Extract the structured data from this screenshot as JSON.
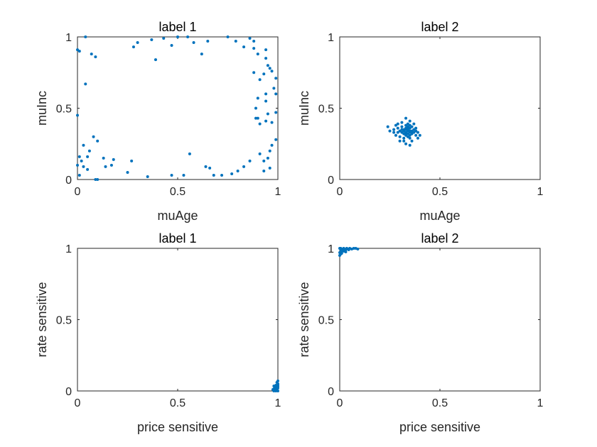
{
  "marker_color": "#0072BD",
  "chart_data": [
    {
      "type": "scatter",
      "title": "label 1",
      "xlabel": "muAge",
      "ylabel": "muInc",
      "xlim": [
        0,
        1
      ],
      "ylim": [
        0,
        1
      ],
      "xticks": [
        "0",
        "0.5",
        "1"
      ],
      "yticks": [
        "0",
        "0.5",
        "1"
      ],
      "grid": false,
      "points": [
        [
          0.0,
          0.91
        ],
        [
          0.01,
          0.9
        ],
        [
          0.04,
          1.0
        ],
        [
          0.07,
          0.88
        ],
        [
          0.09,
          0.86
        ],
        [
          0.04,
          0.67
        ],
        [
          0.28,
          0.93
        ],
        [
          0.3,
          0.96
        ],
        [
          0.37,
          0.98
        ],
        [
          0.39,
          0.84
        ],
        [
          0.43,
          0.99
        ],
        [
          0.5,
          1.0
        ],
        [
          0.47,
          0.94
        ],
        [
          0.55,
          1.0
        ],
        [
          0.58,
          0.96
        ],
        [
          0.62,
          0.88
        ],
        [
          0.65,
          0.97
        ],
        [
          0.75,
          1.0
        ],
        [
          0.79,
          0.97
        ],
        [
          0.83,
          0.93
        ],
        [
          0.86,
          0.99
        ],
        [
          0.88,
          0.97
        ],
        [
          0.88,
          0.92
        ],
        [
          0.9,
          0.88
        ],
        [
          0.94,
          0.91
        ],
        [
          0.94,
          0.85
        ],
        [
          0.95,
          0.8
        ],
        [
          0.96,
          0.78
        ],
        [
          0.97,
          0.76
        ],
        [
          0.93,
          0.74
        ],
        [
          0.88,
          0.75
        ],
        [
          0.91,
          0.7
        ],
        [
          0.99,
          0.71
        ],
        [
          0.98,
          0.64
        ],
        [
          0.94,
          0.6
        ],
        [
          0.99,
          0.6
        ],
        [
          0.94,
          0.55
        ],
        [
          0.9,
          0.57
        ],
        [
          0.89,
          0.5
        ],
        [
          0.99,
          0.47
        ],
        [
          0.95,
          0.46
        ],
        [
          0.9,
          0.43
        ],
        [
          0.89,
          0.43
        ],
        [
          0.94,
          0.41
        ],
        [
          0.91,
          0.39
        ],
        [
          0.97,
          0.4
        ],
        [
          0.99,
          0.28
        ],
        [
          0.97,
          0.24
        ],
        [
          0.96,
          0.2
        ],
        [
          0.91,
          0.18
        ],
        [
          0.95,
          0.15
        ],
        [
          0.93,
          0.13
        ],
        [
          0.96,
          0.08
        ],
        [
          0.93,
          0.06
        ],
        [
          0.86,
          0.13
        ],
        [
          0.83,
          0.09
        ],
        [
          0.8,
          0.06
        ],
        [
          0.77,
          0.04
        ],
        [
          0.72,
          0.03
        ],
        [
          0.68,
          0.03
        ],
        [
          0.66,
          0.08
        ],
        [
          0.64,
          0.09
        ],
        [
          0.56,
          0.18
        ],
        [
          0.53,
          0.03
        ],
        [
          0.47,
          0.03
        ],
        [
          0.35,
          0.02
        ],
        [
          0.27,
          0.13
        ],
        [
          0.25,
          0.05
        ],
        [
          0.18,
          0.14
        ],
        [
          0.17,
          0.1
        ],
        [
          0.13,
          0.15
        ],
        [
          0.14,
          0.09
        ],
        [
          0.1,
          0.27
        ],
        [
          0.08,
          0.3
        ],
        [
          0.06,
          0.2
        ],
        [
          0.05,
          0.16
        ],
        [
          0.03,
          0.24
        ],
        [
          0.02,
          0.13
        ],
        [
          0.01,
          0.16
        ],
        [
          0.0,
          0.45
        ],
        [
          0.01,
          0.03
        ],
        [
          0.0,
          0.1
        ],
        [
          0.03,
          0.09
        ],
        [
          0.05,
          0.07
        ],
        [
          0.09,
          0.0
        ],
        [
          0.1,
          0.0
        ]
      ]
    },
    {
      "type": "scatter",
      "title": "label 2",
      "xlabel": "muAge",
      "ylabel": "muInc",
      "xlim": [
        0,
        1
      ],
      "ylim": [
        0,
        1
      ],
      "xticks": [
        "0",
        "0.5",
        "1"
      ],
      "yticks": [
        "0",
        "0.5",
        "1"
      ],
      "grid": false,
      "points": [
        [
          0.24,
          0.37
        ],
        [
          0.25,
          0.34
        ],
        [
          0.27,
          0.35
        ],
        [
          0.27,
          0.33
        ],
        [
          0.28,
          0.38
        ],
        [
          0.28,
          0.31
        ],
        [
          0.29,
          0.36
        ],
        [
          0.29,
          0.39
        ],
        [
          0.3,
          0.34
        ],
        [
          0.3,
          0.3
        ],
        [
          0.3,
          0.27
        ],
        [
          0.31,
          0.33
        ],
        [
          0.31,
          0.37
        ],
        [
          0.31,
          0.4
        ],
        [
          0.32,
          0.32
        ],
        [
          0.32,
          0.35
        ],
        [
          0.32,
          0.29
        ],
        [
          0.32,
          0.27
        ],
        [
          0.33,
          0.36
        ],
        [
          0.33,
          0.33
        ],
        [
          0.33,
          0.31
        ],
        [
          0.33,
          0.38
        ],
        [
          0.33,
          0.43
        ],
        [
          0.33,
          0.25
        ],
        [
          0.34,
          0.34
        ],
        [
          0.34,
          0.35
        ],
        [
          0.34,
          0.32
        ],
        [
          0.34,
          0.3
        ],
        [
          0.34,
          0.37
        ],
        [
          0.34,
          0.39
        ],
        [
          0.35,
          0.33
        ],
        [
          0.35,
          0.36
        ],
        [
          0.35,
          0.31
        ],
        [
          0.35,
          0.29
        ],
        [
          0.35,
          0.41
        ],
        [
          0.35,
          0.24
        ],
        [
          0.36,
          0.34
        ],
        [
          0.36,
          0.37
        ],
        [
          0.36,
          0.32
        ],
        [
          0.36,
          0.27
        ],
        [
          0.37,
          0.35
        ],
        [
          0.37,
          0.33
        ],
        [
          0.37,
          0.39
        ],
        [
          0.38,
          0.34
        ],
        [
          0.38,
          0.31
        ],
        [
          0.38,
          0.36
        ],
        [
          0.39,
          0.33
        ],
        [
          0.39,
          0.29
        ],
        [
          0.4,
          0.31
        ],
        [
          0.32,
          0.34
        ],
        [
          0.33,
          0.35
        ],
        [
          0.34,
          0.36
        ],
        [
          0.35,
          0.34
        ],
        [
          0.36,
          0.33
        ],
        [
          0.31,
          0.35
        ],
        [
          0.33,
          0.32
        ],
        [
          0.35,
          0.38
        ],
        [
          0.29,
          0.33
        ]
      ]
    },
    {
      "type": "scatter",
      "title": "label 1",
      "xlabel": "price sensitive",
      "ylabel": "rate sensitive",
      "xlim": [
        0,
        1
      ],
      "ylim": [
        0,
        1
      ],
      "xticks": [
        "0",
        "0.5",
        "1"
      ],
      "yticks": [
        "0",
        "0.5",
        "1"
      ],
      "grid": false,
      "points": [
        [
          0.98,
          0.0
        ],
        [
          0.985,
          0.005
        ],
        [
          0.99,
          0.01
        ],
        [
          0.995,
          0.015
        ],
        [
          1.0,
          0.02
        ],
        [
          0.99,
          0.025
        ],
        [
          1.0,
          0.03
        ],
        [
          0.98,
          0.035
        ],
        [
          0.99,
          0.04
        ],
        [
          1.0,
          0.045
        ],
        [
          1.0,
          0.05
        ],
        [
          0.995,
          0.06
        ],
        [
          1.0,
          0.07
        ],
        [
          0.985,
          0.02
        ],
        [
          0.99,
          0.0
        ],
        [
          1.0,
          0.0
        ],
        [
          0.995,
          0.005
        ],
        [
          0.98,
          0.015
        ],
        [
          0.975,
          0.01
        ],
        [
          1.0,
          0.035
        ]
      ]
    },
    {
      "type": "scatter",
      "title": "label 2",
      "xlabel": "price sensitive",
      "ylabel": "rate sensitive",
      "xlim": [
        0,
        1
      ],
      "ylim": [
        0,
        1
      ],
      "xticks": [
        "0",
        "0.5",
        "1"
      ],
      "yticks": [
        "0",
        "0.5",
        "1"
      ],
      "grid": false,
      "points": [
        [
          0.0,
          1.0
        ],
        [
          0.005,
          0.99
        ],
        [
          0.01,
          0.98
        ],
        [
          0.015,
          0.995
        ],
        [
          0.02,
          1.0
        ],
        [
          0.025,
          0.985
        ],
        [
          0.03,
          0.99
        ],
        [
          0.035,
          1.0
        ],
        [
          0.04,
          0.995
        ],
        [
          0.045,
          0.99
        ],
        [
          0.05,
          1.0
        ],
        [
          0.06,
          0.995
        ],
        [
          0.07,
          1.0
        ],
        [
          0.08,
          1.0
        ],
        [
          0.09,
          0.995
        ],
        [
          0.0,
          0.97
        ],
        [
          0.005,
          0.96
        ],
        [
          0.0,
          0.95
        ],
        [
          0.01,
          0.965
        ],
        [
          0.02,
          0.98
        ],
        [
          0.03,
          0.975
        ],
        [
          0.005,
          1.0
        ]
      ]
    }
  ]
}
